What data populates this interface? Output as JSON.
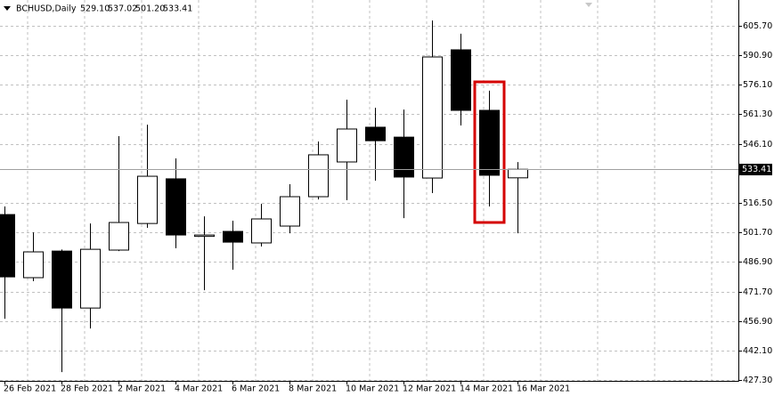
{
  "chart_data": {
    "type": "candlestick",
    "title": "BCHUSD,Daily",
    "ohlc_labels": [
      "529.10",
      "537.02",
      "501.20",
      "533.41"
    ],
    "categories": [
      "26 Feb 2021",
      null,
      "28 Feb 2021",
      null,
      "2 Mar 2021",
      null,
      "4 Mar 2021",
      null,
      "6 Mar 2021",
      null,
      "8 Mar 2021",
      null,
      "10 Mar 2021",
      null,
      "12 Mar 2021",
      null,
      "14 Mar 2021",
      null,
      "16 Mar 2021"
    ],
    "open": [
      510.6,
      478.8,
      492.2,
      463.5,
      492.7,
      506.1,
      528.6,
      499.6,
      502.1,
      496.3,
      504.8,
      519.6,
      537.1,
      554.6,
      549.6,
      529.0,
      593.6,
      563.1,
      529.1
    ],
    "high": [
      514.7,
      501.6,
      493.0,
      506.1,
      550.1,
      555.9,
      538.9,
      509.7,
      507.5,
      516.0,
      525.9,
      547.4,
      568.5,
      564.4,
      563.5,
      608.4,
      601.7,
      573.0,
      537.02
    ],
    "low": [
      458.1,
      477.0,
      431.2,
      453.2,
      492.2,
      503.9,
      493.6,
      472.5,
      482.8,
      494.5,
      501.2,
      518.2,
      517.8,
      527.7,
      508.8,
      521.4,
      555.5,
      514.7,
      501.2
    ],
    "close": [
      479.2,
      491.8,
      463.5,
      493.1,
      506.6,
      529.9,
      500.3,
      500.3,
      496.7,
      508.4,
      519.6,
      540.7,
      553.7,
      547.8,
      529.5,
      590.0,
      563.1,
      530.4,
      533.41
    ],
    "ylim": [
      426.8,
      618.7
    ],
    "yticks": [
      {
        "value": 605.7,
        "label": "605.70"
      },
      {
        "value": 590.9,
        "label": "590.90"
      },
      {
        "value": 576.1,
        "label": "576.10"
      },
      {
        "value": 561.3,
        "label": "561.30"
      },
      {
        "value": 546.1,
        "label": "546.10"
      },
      {
        "value": 516.5,
        "label": "516.50"
      },
      {
        "value": 501.7,
        "label": "501.70"
      },
      {
        "value": 486.9,
        "label": "486.90"
      },
      {
        "value": 471.7,
        "label": "471.70"
      },
      {
        "value": 456.9,
        "label": "456.90"
      },
      {
        "value": 442.1,
        "label": "442.10"
      },
      {
        "value": 427.3,
        "label": "427.30"
      }
    ],
    "grid": true,
    "up_color": "#ffffff",
    "down_color": "#000000",
    "outline_color": "#000000"
  }
}
